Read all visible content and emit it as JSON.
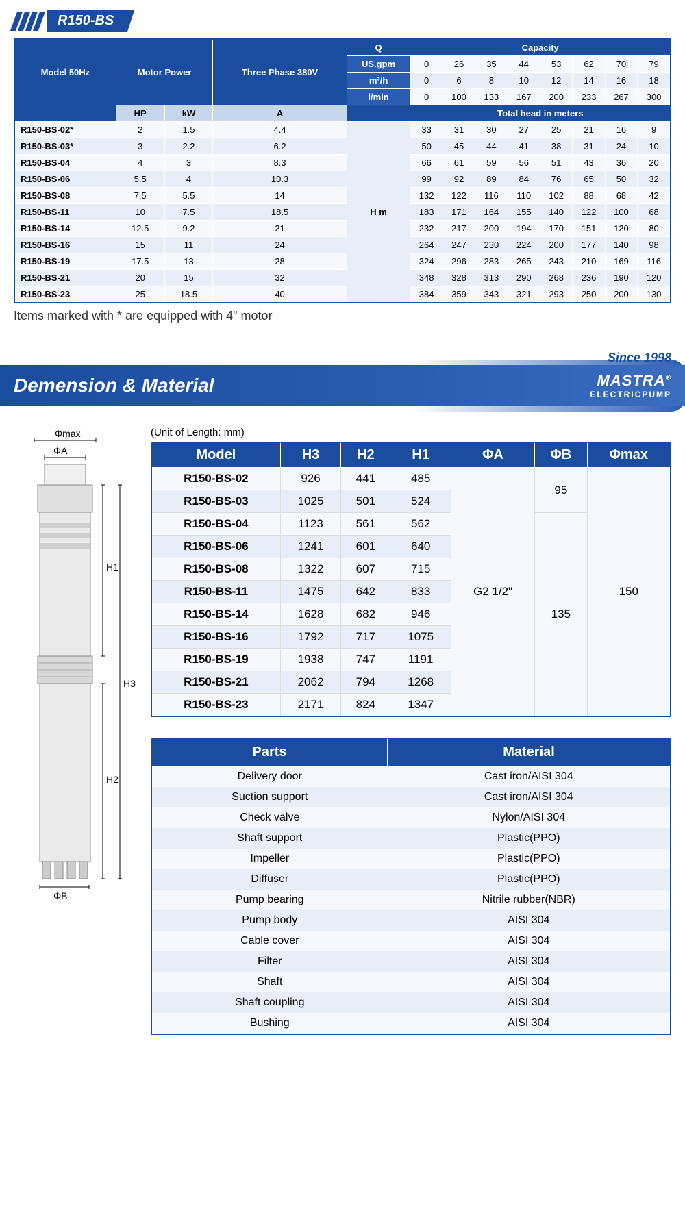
{
  "header": {
    "title": "R150-BS"
  },
  "specs": {
    "col_model": "Model 50Hz",
    "col_motor": "Motor Power",
    "col_phase": "Three Phase 380V",
    "col_q": "Q",
    "col_capacity": "Capacity",
    "sub_hp": "HP",
    "sub_kw": "kW",
    "sub_a": "A",
    "row_usgpm": "US.gpm",
    "row_m3h": "m³/h",
    "row_lmin": "l/min",
    "total_head": "Total head in meters",
    "hm": "H m",
    "usgpm": [
      "0",
      "26",
      "35",
      "44",
      "53",
      "62",
      "70",
      "79"
    ],
    "m3h": [
      "0",
      "6",
      "8",
      "10",
      "12",
      "14",
      "16",
      "18"
    ],
    "lmin": [
      "0",
      "100",
      "133",
      "167",
      "200",
      "233",
      "267",
      "300"
    ],
    "rows": [
      {
        "model": "R150-BS-02*",
        "hp": "2",
        "kw": "1.5",
        "a": "4.4",
        "vals": [
          "33",
          "31",
          "30",
          "27",
          "25",
          "21",
          "16",
          "9"
        ]
      },
      {
        "model": "R150-BS-03*",
        "hp": "3",
        "kw": "2.2",
        "a": "6.2",
        "vals": [
          "50",
          "45",
          "44",
          "41",
          "38",
          "31",
          "24",
          "10"
        ]
      },
      {
        "model": "R150-BS-04",
        "hp": "4",
        "kw": "3",
        "a": "8.3",
        "vals": [
          "66",
          "61",
          "59",
          "56",
          "51",
          "43",
          "36",
          "20"
        ]
      },
      {
        "model": "R150-BS-06",
        "hp": "5.5",
        "kw": "4",
        "a": "10.3",
        "vals": [
          "99",
          "92",
          "89",
          "84",
          "76",
          "65",
          "50",
          "32"
        ]
      },
      {
        "model": "R150-BS-08",
        "hp": "7.5",
        "kw": "5.5",
        "a": "14",
        "vals": [
          "132",
          "122",
          "116",
          "110",
          "102",
          "88",
          "68",
          "42"
        ]
      },
      {
        "model": "R150-BS-11",
        "hp": "10",
        "kw": "7.5",
        "a": "18.5",
        "vals": [
          "183",
          "171",
          "164",
          "155",
          "140",
          "122",
          "100",
          "68"
        ]
      },
      {
        "model": "R150-BS-14",
        "hp": "12.5",
        "kw": "9.2",
        "a": "21",
        "vals": [
          "232",
          "217",
          "200",
          "194",
          "170",
          "151",
          "120",
          "80"
        ]
      },
      {
        "model": "R150-BS-16",
        "hp": "15",
        "kw": "11",
        "a": "24",
        "vals": [
          "264",
          "247",
          "230",
          "224",
          "200",
          "177",
          "140",
          "98"
        ]
      },
      {
        "model": "R150-BS-19",
        "hp": "17.5",
        "kw": "13",
        "a": "28",
        "vals": [
          "324",
          "296",
          "283",
          "265",
          "243",
          "210",
          "169",
          "116"
        ]
      },
      {
        "model": "R150-BS-21",
        "hp": "20",
        "kw": "15",
        "a": "32",
        "vals": [
          "348",
          "328",
          "313",
          "290",
          "268",
          "236",
          "190",
          "120"
        ]
      },
      {
        "model": "R150-BS-23",
        "hp": "25",
        "kw": "18.5",
        "a": "40",
        "vals": [
          "384",
          "359",
          "343",
          "321",
          "293",
          "250",
          "200",
          "130"
        ]
      }
    ]
  },
  "footnote": "Items marked with * are equipped with 4\" motor",
  "since": "Since 1998",
  "section_title": "Demension & Material",
  "brand": {
    "name": "MASTRA",
    "sub": "ELECTRICPUMP"
  },
  "unit_note": "(Unit of Length: mm)",
  "diagram": {
    "phimax": "Φmax",
    "phia": "ΦA",
    "phib": "ΦB",
    "h1": "H1",
    "h2": "H2",
    "h3": "H3"
  },
  "dims": {
    "cols": [
      "Model",
      "H3",
      "H2",
      "H1",
      "ΦA",
      "ΦB",
      "Φmax"
    ],
    "phia_val": "G2 1/2\"",
    "phib_vals": [
      "95",
      "135"
    ],
    "phimax_val": "150",
    "rows": [
      {
        "model": "R150-BS-02",
        "h3": "926",
        "h2": "441",
        "h1": "485"
      },
      {
        "model": "R150-BS-03",
        "h3": "1025",
        "h2": "501",
        "h1": "524"
      },
      {
        "model": "R150-BS-04",
        "h3": "1123",
        "h2": "561",
        "h1": "562"
      },
      {
        "model": "R150-BS-06",
        "h3": "1241",
        "h2": "601",
        "h1": "640"
      },
      {
        "model": "R150-BS-08",
        "h3": "1322",
        "h2": "607",
        "h1": "715"
      },
      {
        "model": "R150-BS-11",
        "h3": "1475",
        "h2": "642",
        "h1": "833"
      },
      {
        "model": "R150-BS-14",
        "h3": "1628",
        "h2": "682",
        "h1": "946"
      },
      {
        "model": "R150-BS-16",
        "h3": "1792",
        "h2": "717",
        "h1": "1075"
      },
      {
        "model": "R150-BS-19",
        "h3": "1938",
        "h2": "747",
        "h1": "1191"
      },
      {
        "model": "R150-BS-21",
        "h3": "2062",
        "h2": "794",
        "h1": "1268"
      },
      {
        "model": "R150-BS-23",
        "h3": "2171",
        "h2": "824",
        "h1": "1347"
      }
    ]
  },
  "materials": {
    "col_parts": "Parts",
    "col_material": "Material",
    "rows": [
      {
        "p": "Delivery door",
        "m": "Cast iron/AISI 304"
      },
      {
        "p": "Suction support",
        "m": "Cast iron/AISI 304"
      },
      {
        "p": "Check valve",
        "m": "Nylon/AISI 304"
      },
      {
        "p": "Shaft support",
        "m": "Plastic(PPO)"
      },
      {
        "p": "Impeller",
        "m": "Plastic(PPO)"
      },
      {
        "p": "Diffuser",
        "m": "Plastic(PPO)"
      },
      {
        "p": "Pump bearing",
        "m": "Nitrile rubber(NBR)"
      },
      {
        "p": "Pump body",
        "m": "AISI 304"
      },
      {
        "p": "Cable cover",
        "m": "AISI 304"
      },
      {
        "p": "Filter",
        "m": "AISI 304"
      },
      {
        "p": "Shaft",
        "m": "AISI 304"
      },
      {
        "p": "Shaft coupling",
        "m": "AISI 304"
      },
      {
        "p": "Bushing",
        "m": "AISI 304"
      }
    ]
  }
}
